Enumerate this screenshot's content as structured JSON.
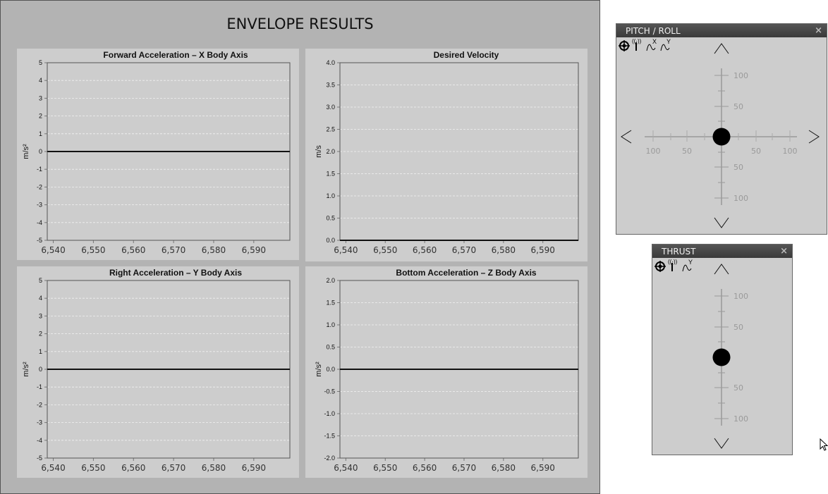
{
  "main": {
    "title": "ENVELOPE RESULTS"
  },
  "chart_data": [
    {
      "type": "line",
      "title": "Forward Acceleration – X Body Axis",
      "ylabel": "m/s²",
      "xlabel": "",
      "ylim": [
        -5,
        5
      ],
      "yticks": [
        -5,
        -4,
        -3,
        -2,
        -1,
        0,
        1,
        2,
        3,
        4,
        5
      ],
      "ytick_labels": [
        "-5",
        "-4",
        "-3",
        "-2",
        "-1",
        "0",
        "1",
        "2",
        "3",
        "4",
        "5"
      ],
      "xlim": [
        6538.5,
        6599
      ],
      "xticks": [
        6540,
        6550,
        6560,
        6570,
        6580,
        6590
      ],
      "xtick_labels": [
        "6,540",
        "6,550",
        "6,560",
        "6,570",
        "6,580",
        "6,590"
      ],
      "grid": true,
      "series": [
        {
          "x": [
            6538.5,
            6599
          ],
          "y": [
            0,
            0
          ]
        }
      ]
    },
    {
      "type": "line",
      "title": "Desired Velocity",
      "ylabel": "m/s",
      "xlabel": "",
      "ylim": [
        0,
        4
      ],
      "yticks": [
        0,
        0.5,
        1,
        1.5,
        2,
        2.5,
        3,
        3.5,
        4
      ],
      "ytick_labels": [
        "0.0",
        "0.5",
        "1.0",
        "1.5",
        "2.0",
        "2.5",
        "3.0",
        "3.5",
        "4.0"
      ],
      "xlim": [
        6538.5,
        6599
      ],
      "xticks": [
        6540,
        6550,
        6560,
        6570,
        6580,
        6590
      ],
      "xtick_labels": [
        "6,540",
        "6,550",
        "6,560",
        "6,570",
        "6,580",
        "6,590"
      ],
      "grid": true,
      "series": [
        {
          "x": [
            6538.5,
            6599
          ],
          "y": [
            0,
            0
          ]
        }
      ]
    },
    {
      "type": "line",
      "title": "Right Acceleration – Y Body Axis",
      "ylabel": "m/s²",
      "xlabel": "",
      "ylim": [
        -5,
        5
      ],
      "yticks": [
        -5,
        -4,
        -3,
        -2,
        -1,
        0,
        1,
        2,
        3,
        4,
        5
      ],
      "ytick_labels": [
        "-5",
        "-4",
        "-3",
        "-2",
        "-1",
        "0",
        "1",
        "2",
        "3",
        "4",
        "5"
      ],
      "xlim": [
        6538.5,
        6599
      ],
      "xticks": [
        6540,
        6550,
        6560,
        6570,
        6580,
        6590
      ],
      "xtick_labels": [
        "6,540",
        "6,550",
        "6,560",
        "6,570",
        "6,580",
        "6,590"
      ],
      "grid": true,
      "series": [
        {
          "x": [
            6538.5,
            6599
          ],
          "y": [
            0,
            0
          ]
        }
      ]
    },
    {
      "type": "line",
      "title": "Bottom Acceleration – Z Body Axis",
      "ylabel": "m/s²",
      "xlabel": "",
      "ylim": [
        -2,
        2
      ],
      "yticks": [
        -2,
        -1.5,
        -1,
        -0.5,
        0,
        0.5,
        1,
        1.5,
        2
      ],
      "ytick_labels": [
        "-2.0",
        "-1.5",
        "-1.0",
        "-0.5",
        "0.0",
        "0.5",
        "1.0",
        "1.5",
        "2.0"
      ],
      "xlim": [
        6538.5,
        6599
      ],
      "xticks": [
        6540,
        6550,
        6560,
        6570,
        6580,
        6590
      ],
      "xtick_labels": [
        "6,540",
        "6,550",
        "6,560",
        "6,570",
        "6,580",
        "6,590"
      ],
      "grid": true,
      "series": [
        {
          "x": [
            6538.5,
            6599
          ],
          "y": [
            0,
            0
          ]
        }
      ]
    }
  ],
  "pitch_roll": {
    "title": "PITCH / ROLL",
    "close": "×",
    "tool_icons": [
      "crosshair-icon",
      "antenna-icon",
      "wave-x-icon",
      "wave-y-icon"
    ],
    "wave_x": "X",
    "wave_y": "Y",
    "v_labels": [
      "100",
      "50",
      "50",
      "100"
    ],
    "h_labels": [
      "100",
      "50",
      "50",
      "100"
    ],
    "pitch": 0,
    "roll": 0
  },
  "thrust": {
    "title": "THRUST",
    "close": "×",
    "tool_icons": [
      "crosshair-icon",
      "antenna-icon",
      "wave-y-icon"
    ],
    "wave_y": "Y",
    "v_labels": [
      "100",
      "50",
      "50",
      "100"
    ],
    "thrust": 0
  }
}
